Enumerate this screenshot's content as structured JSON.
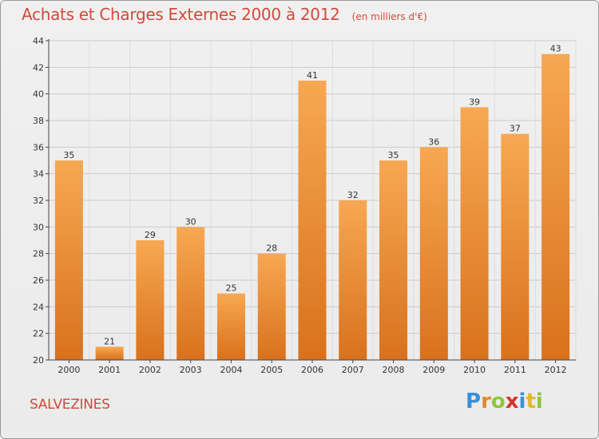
{
  "header": {
    "title": "Achats et Charges Externes 2000 à 2012",
    "unit": "(en milliers d'€)"
  },
  "footer": {
    "commune": "SALVEZINES",
    "logo_text": "Proxiti",
    "logo_letters": [
      {
        "char": "P",
        "color": "#3a8fd8"
      },
      {
        "char": "r",
        "color": "#e08a2e"
      },
      {
        "char": "o",
        "color": "#8cc63e"
      },
      {
        "char": "x",
        "color": "#d6332a"
      },
      {
        "char": "i",
        "color": "#3a8fd8"
      },
      {
        "char": "t",
        "color": "#e0b82e"
      },
      {
        "char": "i",
        "color": "#8cc63e"
      }
    ]
  },
  "colors": {
    "bar_top": "#f7a852",
    "bar_bottom": "#d9711c",
    "title": "#d14a3a",
    "grid": "#cccccc",
    "axis": "#444444"
  },
  "chart_data": {
    "type": "bar",
    "title": "Achats et Charges Externes 2000 à 2012",
    "subtitle": "(en milliers d'€)",
    "xlabel": "",
    "ylabel": "",
    "ylim": [
      20,
      44
    ],
    "yticks": [
      20,
      22,
      24,
      26,
      28,
      30,
      32,
      34,
      36,
      38,
      40,
      42,
      44
    ],
    "grid": true,
    "categories": [
      "2000",
      "2001",
      "2002",
      "2003",
      "2004",
      "2005",
      "2006",
      "2007",
      "2008",
      "2009",
      "2010",
      "2011",
      "2012"
    ],
    "values": [
      35,
      21,
      29,
      30,
      25,
      28,
      41,
      32,
      35,
      36,
      39,
      37,
      43
    ]
  }
}
